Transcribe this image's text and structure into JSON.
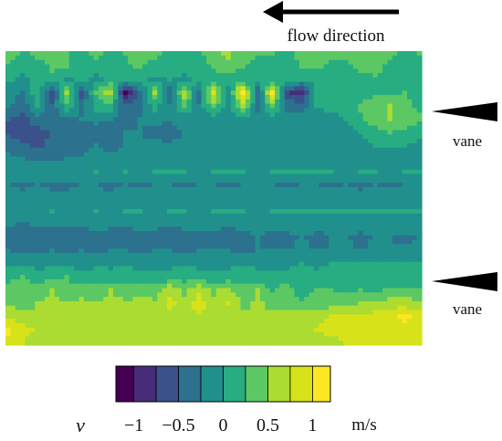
{
  "chart_data": {
    "type": "heatmap",
    "annotations": {
      "flow_direction": "flow direction",
      "vane_top": "vane",
      "vane_bottom": "vane"
    },
    "colorbar": {
      "variable": "v",
      "unit": "m/s",
      "range": [
        -1.2,
        1.2
      ],
      "levels": [
        -1.2,
        -1.0,
        -0.75,
        -0.5,
        -0.25,
        0,
        0.25,
        0.5,
        0.75,
        1.0,
        1.2
      ],
      "tick_values": [
        -1,
        -0.5,
        0,
        0.5,
        1
      ],
      "tick_labels": [
        "−1",
        "−0.5",
        "0",
        "0.5",
        "1"
      ],
      "colors": [
        "#440154",
        "#472c7a",
        "#3b518b",
        "#2c718e",
        "#21908d",
        "#27ad81",
        "#5cc863",
        "#aadc32",
        "#d8e219",
        "#fde725"
      ]
    },
    "grid": {
      "rows": 23,
      "cols": 29
    },
    "values": [
      [
        0.35,
        0.2,
        0.3,
        0.3,
        0.25,
        0.2,
        0.3,
        0.15,
        0.25,
        0.35,
        0.3,
        0.2,
        0.15,
        0.2,
        0.45,
        0.55,
        0.4,
        0.3,
        0.25,
        0.2,
        0.3,
        0.35,
        0.3,
        0.4,
        0.45,
        0.35,
        0.3,
        0.2,
        0.25
      ],
      [
        0.2,
        0.1,
        0.15,
        0.3,
        0.25,
        0.1,
        0.2,
        0.05,
        0.2,
        0.3,
        0.15,
        0.1,
        0.05,
        0.1,
        0.3,
        0.4,
        0.25,
        0.1,
        0.15,
        0.2,
        0.25,
        0.3,
        0.2,
        0.15,
        0.3,
        0.35,
        0.2,
        0.15,
        0.2
      ],
      [
        0.05,
        -0.1,
        0.1,
        0.2,
        -0.05,
        0.1,
        -0.1,
        0.15,
        0.1,
        0.05,
        -0.05,
        0.0,
        -0.05,
        0.05,
        0.1,
        0.15,
        0.05,
        0.0,
        0.05,
        0.1,
        0.05,
        0.1,
        0.0,
        0.05,
        0.15,
        0.2,
        0.1,
        0.05,
        0.1
      ],
      [
        -0.1,
        -0.3,
        0.2,
        -0.7,
        0.6,
        -0.6,
        0.3,
        0.6,
        -1.1,
        -0.3,
        0.5,
        -0.5,
        0.7,
        -0.4,
        0.8,
        -0.2,
        1.2,
        -0.5,
        1.0,
        -0.7,
        -0.9,
        0.1,
        0.0,
        0.05,
        0.1,
        0.15,
        0.2,
        0.25,
        0.15
      ],
      [
        -0.2,
        -0.45,
        0.0,
        -0.45,
        0.2,
        -0.35,
        0.1,
        0.2,
        -0.5,
        -0.3,
        0.1,
        -0.25,
        0.3,
        -0.2,
        0.4,
        -0.15,
        0.6,
        -0.3,
        0.4,
        -0.35,
        -0.4,
        0.0,
        0.05,
        0.1,
        0.3,
        0.45,
        0.5,
        0.35,
        0.2
      ],
      [
        -0.5,
        -0.6,
        -0.35,
        -0.4,
        -0.3,
        -0.25,
        -0.2,
        -0.25,
        -0.3,
        -0.25,
        -0.2,
        -0.25,
        -0.15,
        -0.2,
        -0.1,
        -0.2,
        -0.1,
        -0.15,
        -0.15,
        -0.2,
        -0.15,
        -0.1,
        -0.05,
        0.0,
        0.2,
        0.4,
        0.5,
        0.45,
        0.3
      ],
      [
        -0.55,
        -0.65,
        -0.6,
        -0.5,
        -0.45,
        -0.35,
        -0.35,
        -0.3,
        -0.25,
        -0.25,
        -0.3,
        -0.3,
        -0.25,
        -0.2,
        -0.25,
        -0.2,
        -0.2,
        -0.2,
        -0.15,
        -0.15,
        -0.15,
        -0.1,
        -0.1,
        -0.05,
        0.0,
        0.15,
        0.25,
        0.2,
        0.1
      ],
      [
        -0.35,
        -0.45,
        -0.55,
        -0.45,
        -0.35,
        -0.3,
        -0.25,
        -0.3,
        -0.25,
        -0.25,
        -0.2,
        -0.25,
        -0.2,
        -0.2,
        -0.2,
        -0.15,
        -0.15,
        -0.15,
        -0.1,
        -0.15,
        -0.1,
        -0.1,
        -0.05,
        -0.05,
        -0.05,
        0.0,
        0.0,
        0.0,
        -0.05
      ],
      [
        -0.2,
        -0.25,
        -0.3,
        -0.3,
        -0.25,
        -0.25,
        -0.2,
        -0.2,
        -0.2,
        -0.15,
        -0.15,
        -0.15,
        -0.15,
        -0.1,
        -0.15,
        -0.1,
        -0.1,
        -0.1,
        -0.1,
        -0.1,
        -0.1,
        -0.05,
        -0.05,
        -0.05,
        -0.05,
        -0.05,
        -0.1,
        -0.1,
        -0.05
      ],
      [
        -0.05,
        -0.05,
        -0.1,
        -0.05,
        -0.05,
        -0.05,
        0.0,
        -0.05,
        0.0,
        -0.05,
        0.0,
        0.0,
        0.0,
        -0.05,
        0.0,
        0.0,
        0.0,
        -0.05,
        0.0,
        0.0,
        0.0,
        0.0,
        0.0,
        -0.05,
        0.0,
        0.0,
        -0.05,
        0.0,
        0.0
      ],
      [
        -0.25,
        -0.3,
        -0.25,
        -0.3,
        -0.3,
        -0.25,
        -0.25,
        -0.3,
        -0.25,
        -0.3,
        -0.25,
        -0.25,
        -0.3,
        -0.25,
        -0.25,
        -0.3,
        -0.25,
        -0.25,
        -0.25,
        -0.3,
        -0.25,
        -0.25,
        -0.3,
        -0.25,
        -0.3,
        -0.25,
        -0.3,
        -0.25,
        -0.25
      ],
      [
        -0.15,
        -0.2,
        -0.15,
        -0.2,
        -0.2,
        -0.15,
        -0.2,
        -0.2,
        -0.15,
        -0.15,
        -0.2,
        -0.15,
        -0.15,
        -0.2,
        -0.15,
        -0.15,
        -0.15,
        -0.2,
        -0.15,
        -0.15,
        -0.15,
        -0.2,
        -0.15,
        -0.15,
        -0.2,
        -0.15,
        -0.15,
        -0.2,
        -0.15
      ],
      [
        -0.05,
        -0.1,
        -0.05,
        0.0,
        -0.05,
        -0.05,
        0.0,
        -0.05,
        0.0,
        0.0,
        -0.05,
        0.0,
        0.0,
        -0.05,
        0.0,
        0.0,
        0.0,
        -0.05,
        0.0,
        0.0,
        0.05,
        0.0,
        0.0,
        0.05,
        0.0,
        0.05,
        0.0,
        0.05,
        0.0
      ],
      [
        -0.2,
        -0.3,
        -0.2,
        -0.25,
        -0.2,
        -0.25,
        -0.2,
        -0.2,
        -0.25,
        -0.2,
        -0.2,
        -0.25,
        -0.2,
        -0.2,
        -0.2,
        -0.25,
        -0.2,
        -0.2,
        -0.2,
        -0.2,
        -0.15,
        -0.2,
        -0.2,
        -0.15,
        -0.2,
        -0.15,
        -0.2,
        -0.15,
        -0.2
      ],
      [
        -0.35,
        -0.4,
        -0.35,
        -0.3,
        -0.35,
        -0.3,
        -0.3,
        -0.35,
        -0.3,
        -0.3,
        -0.3,
        -0.35,
        -0.3,
        -0.3,
        -0.3,
        -0.3,
        -0.3,
        -0.25,
        -0.3,
        -0.3,
        -0.25,
        -0.3,
        -0.25,
        -0.25,
        -0.3,
        -0.25,
        -0.25,
        -0.3,
        -0.25
      ],
      [
        -0.25,
        -0.3,
        -0.3,
        -0.25,
        -0.3,
        -0.25,
        -0.3,
        -0.25,
        -0.25,
        -0.3,
        -0.25,
        -0.25,
        -0.3,
        -0.25,
        -0.25,
        -0.25,
        -0.3,
        -0.25,
        -0.25,
        -0.25,
        -0.2,
        -0.25,
        -0.25,
        -0.2,
        -0.25,
        -0.2,
        -0.25,
        -0.2,
        -0.2
      ],
      [
        -0.05,
        -0.05,
        -0.1,
        -0.05,
        -0.05,
        -0.1,
        -0.05,
        -0.05,
        -0.05,
        -0.1,
        -0.05,
        -0.05,
        -0.05,
        -0.05,
        -0.05,
        -0.05,
        -0.05,
        -0.05,
        -0.05,
        -0.05,
        0.0,
        -0.05,
        0.0,
        0.0,
        0.0,
        0.0,
        0.0,
        0.0,
        0.0
      ],
      [
        0.2,
        0.25,
        0.15,
        0.2,
        0.25,
        0.1,
        0.15,
        0.1,
        0.2,
        0.1,
        0.05,
        0.1,
        0.15,
        0.1,
        0.05,
        0.1,
        0.15,
        0.1,
        0.05,
        0.1,
        0.05,
        0.1,
        0.05,
        0.1,
        0.1,
        0.05,
        0.1,
        0.05,
        0.1
      ],
      [
        0.35,
        0.4,
        0.3,
        0.5,
        0.3,
        0.45,
        0.3,
        0.5,
        0.3,
        0.45,
        0.35,
        0.7,
        0.4,
        0.7,
        0.45,
        0.6,
        0.3,
        0.5,
        0.2,
        0.4,
        0.1,
        0.3,
        0.25,
        0.2,
        0.25,
        0.2,
        0.3,
        0.25,
        0.3
      ],
      [
        0.45,
        0.4,
        0.5,
        0.55,
        0.5,
        0.55,
        0.5,
        0.6,
        0.55,
        0.6,
        0.55,
        0.85,
        0.6,
        0.9,
        0.55,
        0.75,
        0.45,
        0.55,
        0.4,
        0.35,
        0.3,
        0.35,
        0.4,
        0.45,
        0.5,
        0.55,
        0.6,
        0.65,
        0.55
      ],
      [
        0.7,
        0.6,
        0.55,
        0.6,
        0.65,
        0.6,
        0.7,
        0.65,
        0.7,
        0.65,
        0.7,
        0.7,
        0.65,
        0.7,
        0.65,
        0.6,
        0.55,
        0.5,
        0.55,
        0.6,
        0.65,
        0.7,
        0.75,
        0.8,
        0.75,
        0.85,
        0.9,
        1.05,
        0.9
      ],
      [
        1.05,
        0.85,
        0.7,
        0.6,
        0.6,
        0.65,
        0.7,
        0.65,
        0.6,
        0.65,
        0.7,
        0.65,
        0.6,
        0.6,
        0.55,
        0.6,
        0.55,
        0.6,
        0.6,
        0.65,
        0.7,
        0.75,
        0.8,
        0.85,
        0.9,
        0.85,
        0.9,
        0.95,
        0.9
      ],
      [
        0.95,
        0.75,
        0.6,
        0.55,
        0.5,
        0.55,
        0.6,
        0.55,
        0.5,
        0.55,
        0.6,
        0.55,
        0.5,
        0.55,
        0.5,
        0.55,
        0.5,
        0.55,
        0.55,
        0.6,
        0.6,
        0.65,
        0.7,
        0.75,
        0.8,
        0.75,
        0.85,
        0.8,
        0.75
      ]
    ]
  }
}
